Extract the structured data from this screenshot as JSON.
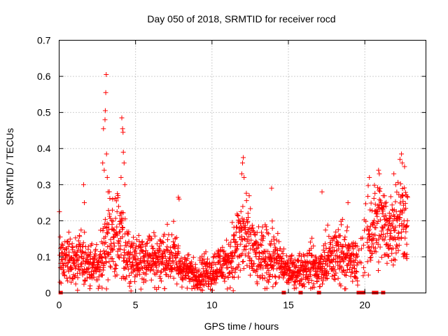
{
  "chart_data": {
    "type": "scatter",
    "title": "Day 050 of 2018, SRMTID for receiver rocd",
    "xlabel": "GPS time / hours",
    "ylabel": "SRMTID / TECUs",
    "xlim": [
      0,
      24
    ],
    "ylim": [
      0,
      0.7
    ],
    "xticks": [
      0,
      5,
      10,
      15,
      20
    ],
    "xtick_labels": [
      "0",
      "5",
      "10",
      "15",
      "20"
    ],
    "yticks": [
      0,
      0.1,
      0.2,
      0.3,
      0.4,
      0.5,
      0.6,
      0.7
    ],
    "ytick_labels": [
      "0",
      "0.1",
      "0.2",
      "0.3",
      "0.4",
      "0.5",
      "0.6",
      "0.7"
    ],
    "grid": true,
    "marker": "plus",
    "point_color": "#ff0000",
    "envelope_hours": [
      0,
      0.5,
      1,
      1.5,
      2,
      2.5,
      3,
      3.5,
      4,
      4.5,
      5,
      5.5,
      6,
      6.5,
      7,
      7.5,
      8,
      8.5,
      9,
      9.5,
      10,
      10.5,
      11,
      11.5,
      12,
      12.5,
      13,
      13.5,
      14,
      14.5,
      15,
      15.5,
      16,
      16.5,
      17,
      17.5,
      18,
      18.5,
      19,
      19.5,
      20,
      20.5,
      21,
      21.5,
      22,
      22.5,
      22.8
    ],
    "envelope_center": [
      0.08,
      0.1,
      0.09,
      0.1,
      0.07,
      0.08,
      0.13,
      0.15,
      0.14,
      0.1,
      0.09,
      0.1,
      0.1,
      0.09,
      0.1,
      0.1,
      0.07,
      0.06,
      0.05,
      0.06,
      0.06,
      0.08,
      0.08,
      0.12,
      0.16,
      0.13,
      0.09,
      0.1,
      0.1,
      0.08,
      0.06,
      0.06,
      0.07,
      0.08,
      0.06,
      0.09,
      0.1,
      0.12,
      0.09,
      0.08,
      0.14,
      0.18,
      0.2,
      0.17,
      0.2,
      0.22,
      0.2
    ],
    "envelope_spread": [
      0.06,
      0.07,
      0.06,
      0.07,
      0.05,
      0.06,
      0.12,
      0.14,
      0.13,
      0.08,
      0.07,
      0.08,
      0.07,
      0.07,
      0.08,
      0.08,
      0.05,
      0.04,
      0.04,
      0.05,
      0.05,
      0.06,
      0.06,
      0.1,
      0.13,
      0.11,
      0.07,
      0.08,
      0.08,
      0.06,
      0.04,
      0.04,
      0.05,
      0.06,
      0.05,
      0.08,
      0.08,
      0.09,
      0.07,
      0.06,
      0.12,
      0.12,
      0.12,
      0.1,
      0.12,
      0.12,
      0.1
    ],
    "outliers": [
      {
        "x": 0.02,
        "y": 0.225
      },
      {
        "x": 1.6,
        "y": 0.3
      },
      {
        "x": 1.65,
        "y": 0.25
      },
      {
        "x": 2.85,
        "y": 0.36
      },
      {
        "x": 2.9,
        "y": 0.455
      },
      {
        "x": 2.95,
        "y": 0.34
      },
      {
        "x": 3.0,
        "y": 0.48
      },
      {
        "x": 3.02,
        "y": 0.505
      },
      {
        "x": 3.05,
        "y": 0.555
      },
      {
        "x": 3.08,
        "y": 0.605
      },
      {
        "x": 3.1,
        "y": 0.385
      },
      {
        "x": 3.15,
        "y": 0.32
      },
      {
        "x": 3.2,
        "y": 0.28
      },
      {
        "x": 3.5,
        "y": 0.26
      },
      {
        "x": 4.1,
        "y": 0.485
      },
      {
        "x": 4.15,
        "y": 0.455
      },
      {
        "x": 4.18,
        "y": 0.445
      },
      {
        "x": 4.2,
        "y": 0.39
      },
      {
        "x": 4.25,
        "y": 0.36
      },
      {
        "x": 4.05,
        "y": 0.32
      },
      {
        "x": 4.3,
        "y": 0.3
      },
      {
        "x": 7.8,
        "y": 0.265
      },
      {
        "x": 7.85,
        "y": 0.26
      },
      {
        "x": 12.0,
        "y": 0.36
      },
      {
        "x": 12.05,
        "y": 0.375
      },
      {
        "x": 11.95,
        "y": 0.33
      },
      {
        "x": 12.1,
        "y": 0.32
      },
      {
        "x": 13.9,
        "y": 0.29
      },
      {
        "x": 17.2,
        "y": 0.28
      },
      {
        "x": 18.9,
        "y": 0.25
      },
      {
        "x": 20.3,
        "y": 0.32
      },
      {
        "x": 20.9,
        "y": 0.34
      },
      {
        "x": 20.95,
        "y": 0.33
      },
      {
        "x": 21.9,
        "y": 0.33
      },
      {
        "x": 22.3,
        "y": 0.37
      },
      {
        "x": 22.4,
        "y": 0.385
      },
      {
        "x": 22.45,
        "y": 0.36
      },
      {
        "x": 22.6,
        "y": 0.35
      },
      {
        "x": 22.7,
        "y": 0.1
      },
      {
        "x": 22.75,
        "y": 0.095
      }
    ],
    "zero_markers_hours": [
      0.1,
      14.7,
      15.8,
      17.0,
      19.6,
      19.75,
      19.9,
      20.6,
      20.75,
      21.2
    ]
  }
}
